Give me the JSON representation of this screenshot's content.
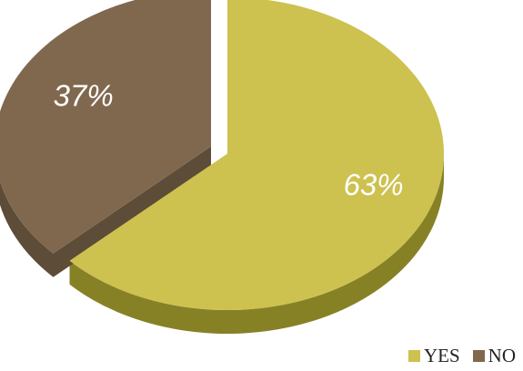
{
  "chart_data": {
    "type": "pie",
    "title": "",
    "style": "3d-exploded",
    "slices": [
      {
        "label": "YES",
        "value": 63,
        "display": "63%",
        "color": "#cdc150",
        "side_color": "#878126"
      },
      {
        "label": "NO",
        "value": 37,
        "display": "37%",
        "color": "#80684f",
        "side_color": "#5c4c38"
      }
    ],
    "legend": {
      "position": "bottom-right",
      "entries": [
        {
          "label": "YES",
          "color": "#cdc150"
        },
        {
          "label": "NO",
          "color": "#80684f"
        }
      ]
    }
  }
}
